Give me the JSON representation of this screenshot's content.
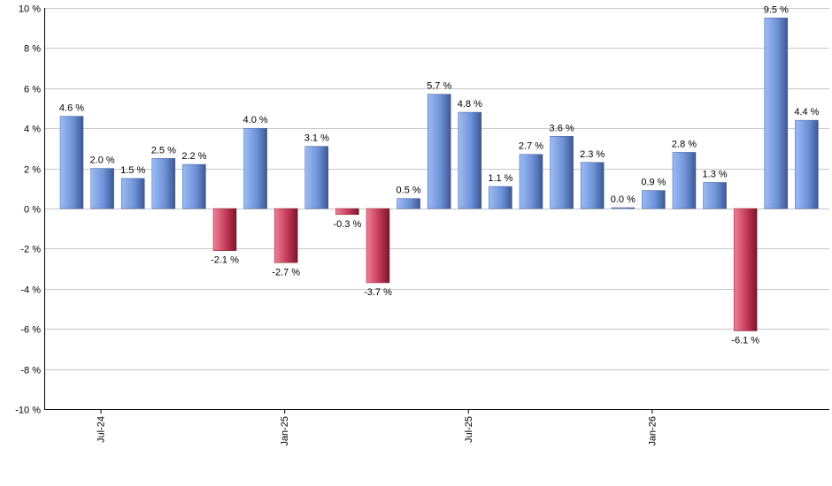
{
  "chart_data": {
    "type": "bar",
    "title": "",
    "xlabel": "",
    "ylabel": "",
    "ylim": [
      -10,
      10
    ],
    "y_ticks": [
      10,
      8,
      6,
      4,
      2,
      0,
      -2,
      -4,
      -6,
      -8,
      -10
    ],
    "y_tick_labels": [
      "10 %",
      "8 %",
      "6 %",
      "4 %",
      "2 %",
      "0 %",
      "-2 %",
      "-4 %",
      "-6 %",
      "-8 %",
      "-10 %"
    ],
    "grid": true,
    "categories": [
      "2024-06",
      "2024-07",
      "2024-08",
      "2024-09",
      "2024-10",
      "2024-11",
      "2024-12",
      "2025-01",
      "2025-02",
      "2025-03",
      "2025-04",
      "2025-05",
      "2025-06",
      "2025-07",
      "2025-08",
      "2025-09",
      "2025-10",
      "2025-11",
      "2025-12",
      "2026-01",
      "2026-02",
      "2026-03",
      "2026-04",
      "2026-05",
      "2026-06"
    ],
    "values": [
      4.6,
      2.0,
      1.5,
      2.5,
      2.2,
      -2.1,
      4.0,
      -2.7,
      3.1,
      -0.3,
      -3.7,
      0.5,
      5.7,
      4.8,
      1.1,
      2.7,
      3.6,
      2.3,
      0.0,
      0.9,
      2.8,
      1.3,
      -6.1,
      9.5,
      4.4
    ],
    "data_labels": [
      "4.6 %",
      "2.0 %",
      "1.5 %",
      "2.5 %",
      "2.2 %",
      "-2.1 %",
      "4.0 %",
      "-2.7 %",
      "3.1 %",
      "-0.3 %",
      "-3.7 %",
      "0.5 %",
      "5.7 %",
      "4.8 %",
      "1.1 %",
      "2.7 %",
      "3.6 %",
      "2.3 %",
      "0.0 %",
      "0.9 %",
      "2.8 %",
      "1.3 %",
      "-6.1 %",
      "9.5 %",
      "4.4 %"
    ],
    "x_tick_labels": [
      {
        "label": "Jul-24",
        "index": 1
      },
      {
        "label": "Jan-25",
        "index": 7
      },
      {
        "label": "Jul-25",
        "index": 13
      },
      {
        "label": "Jan-26",
        "index": 19
      }
    ],
    "colors": {
      "positive": "#7a9fe0",
      "positive_dark": "#3a5898",
      "negative": "#d05068",
      "negative_dark": "#8a1a30"
    }
  }
}
